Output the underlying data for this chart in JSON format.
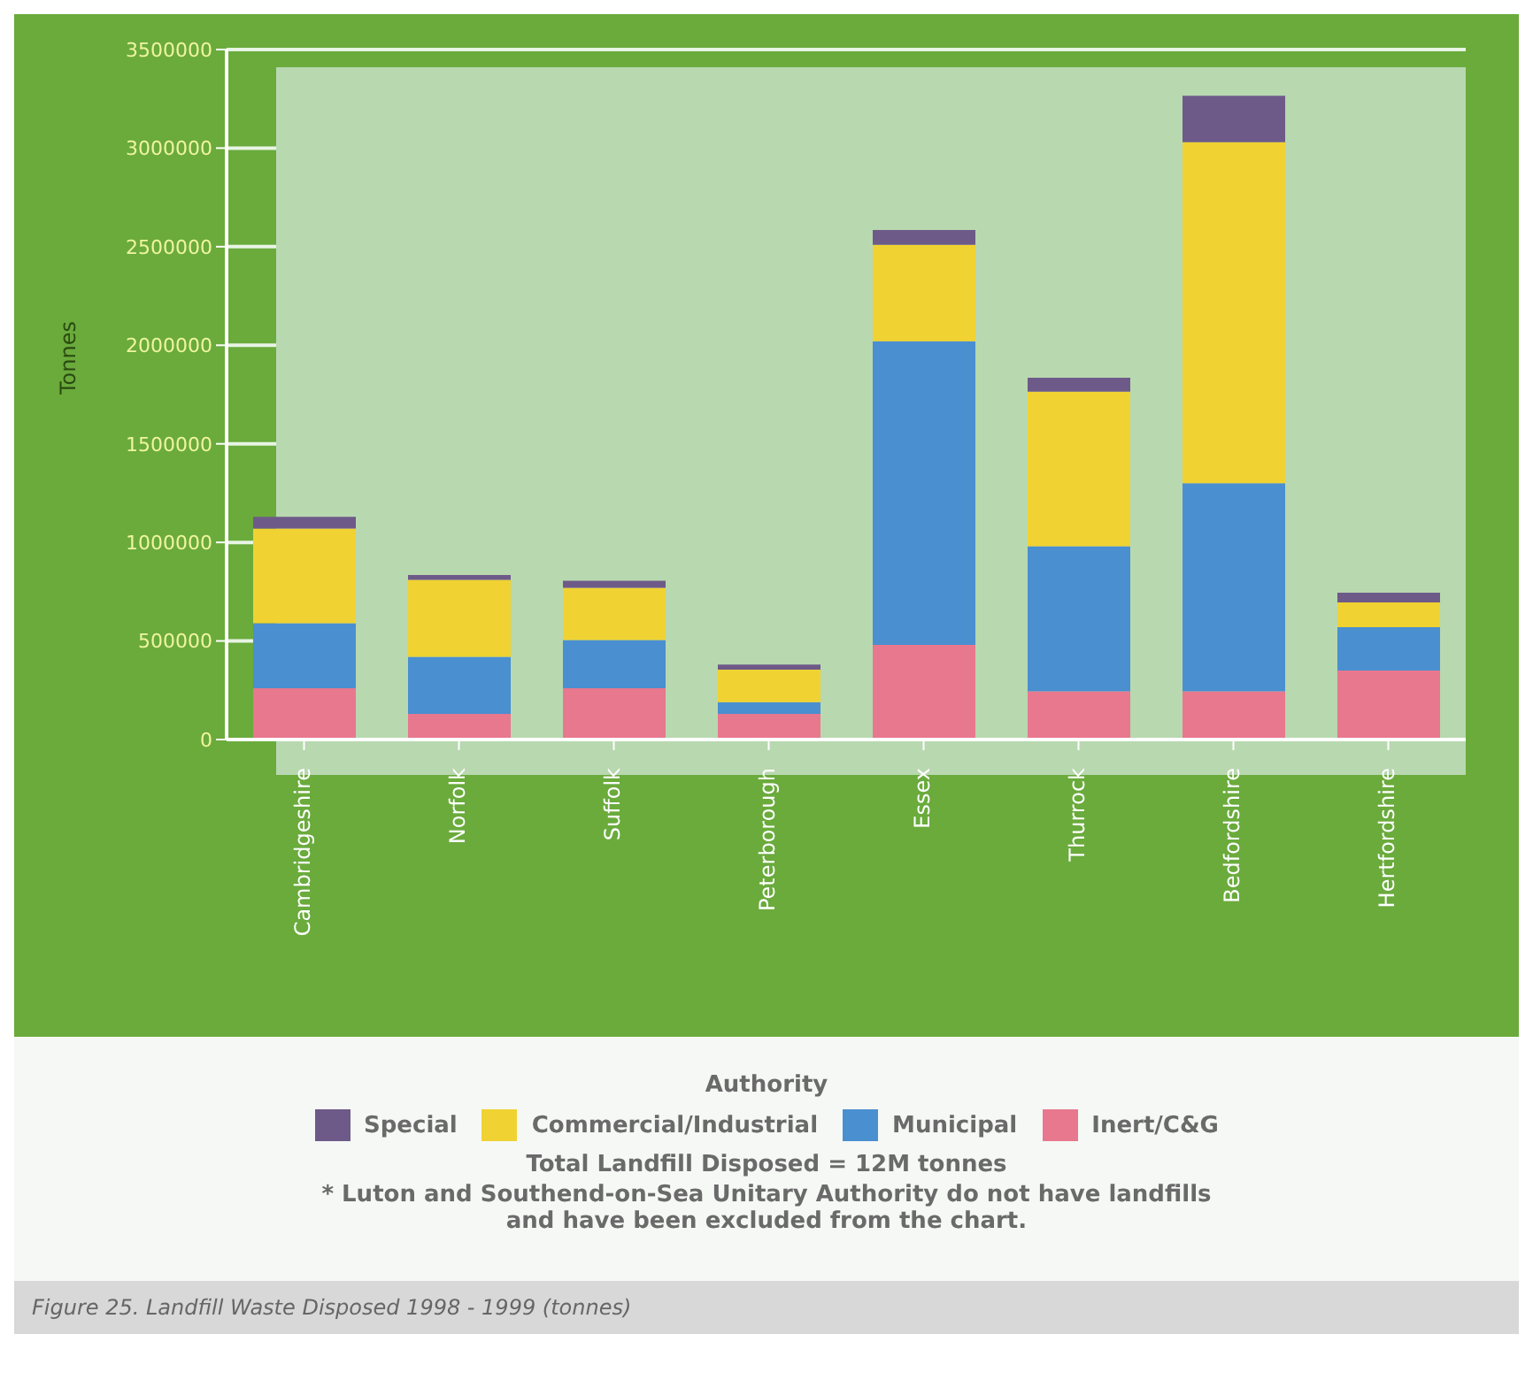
{
  "chart_data": {
    "type": "bar",
    "title": "Figure 25. Landfill Waste Disposed 1998 - 1999 (tonnes)",
    "ylabel": "Tonnes",
    "legend_title": "Authority",
    "categories": [
      "Cambridgeshire",
      "Norfolk",
      "Suffolk",
      "Peterborough",
      "Essex",
      "Thurrock",
      "Bedfordshire",
      "Hertfordshire"
    ],
    "stacked": true,
    "series": [
      {
        "name": "Inert/C&G",
        "color": "#e8788e",
        "values": [
          260000,
          130000,
          260000,
          130000,
          480000,
          245000,
          245000,
          350000
        ]
      },
      {
        "name": "Municipal",
        "color": "#4a8fd0",
        "values": [
          330000,
          290000,
          245000,
          60000,
          1540000,
          735000,
          1055000,
          220000
        ]
      },
      {
        "name": "Commercial/Industrial",
        "color": "#f0d232",
        "values": [
          480000,
          390000,
          265000,
          165000,
          490000,
          785000,
          1730000,
          125000
        ]
      },
      {
        "name": "Special",
        "color": "#6e5a88",
        "values": [
          60000,
          25000,
          35000,
          25000,
          75000,
          70000,
          235000,
          50000
        ]
      }
    ],
    "ylim": [
      0,
      3500000
    ],
    "yticks": [
      0,
      500000,
      1000000,
      1500000,
      2000000,
      2500000,
      3000000,
      3500000
    ],
    "grid": "y",
    "legend": "bottom",
    "annotations": [
      "Total Landfill Disposed = 12M tonnes",
      "* Luton and Southend-on-Sea Unitary Authority do not have landfills and have been excluded from the chart."
    ]
  }
}
